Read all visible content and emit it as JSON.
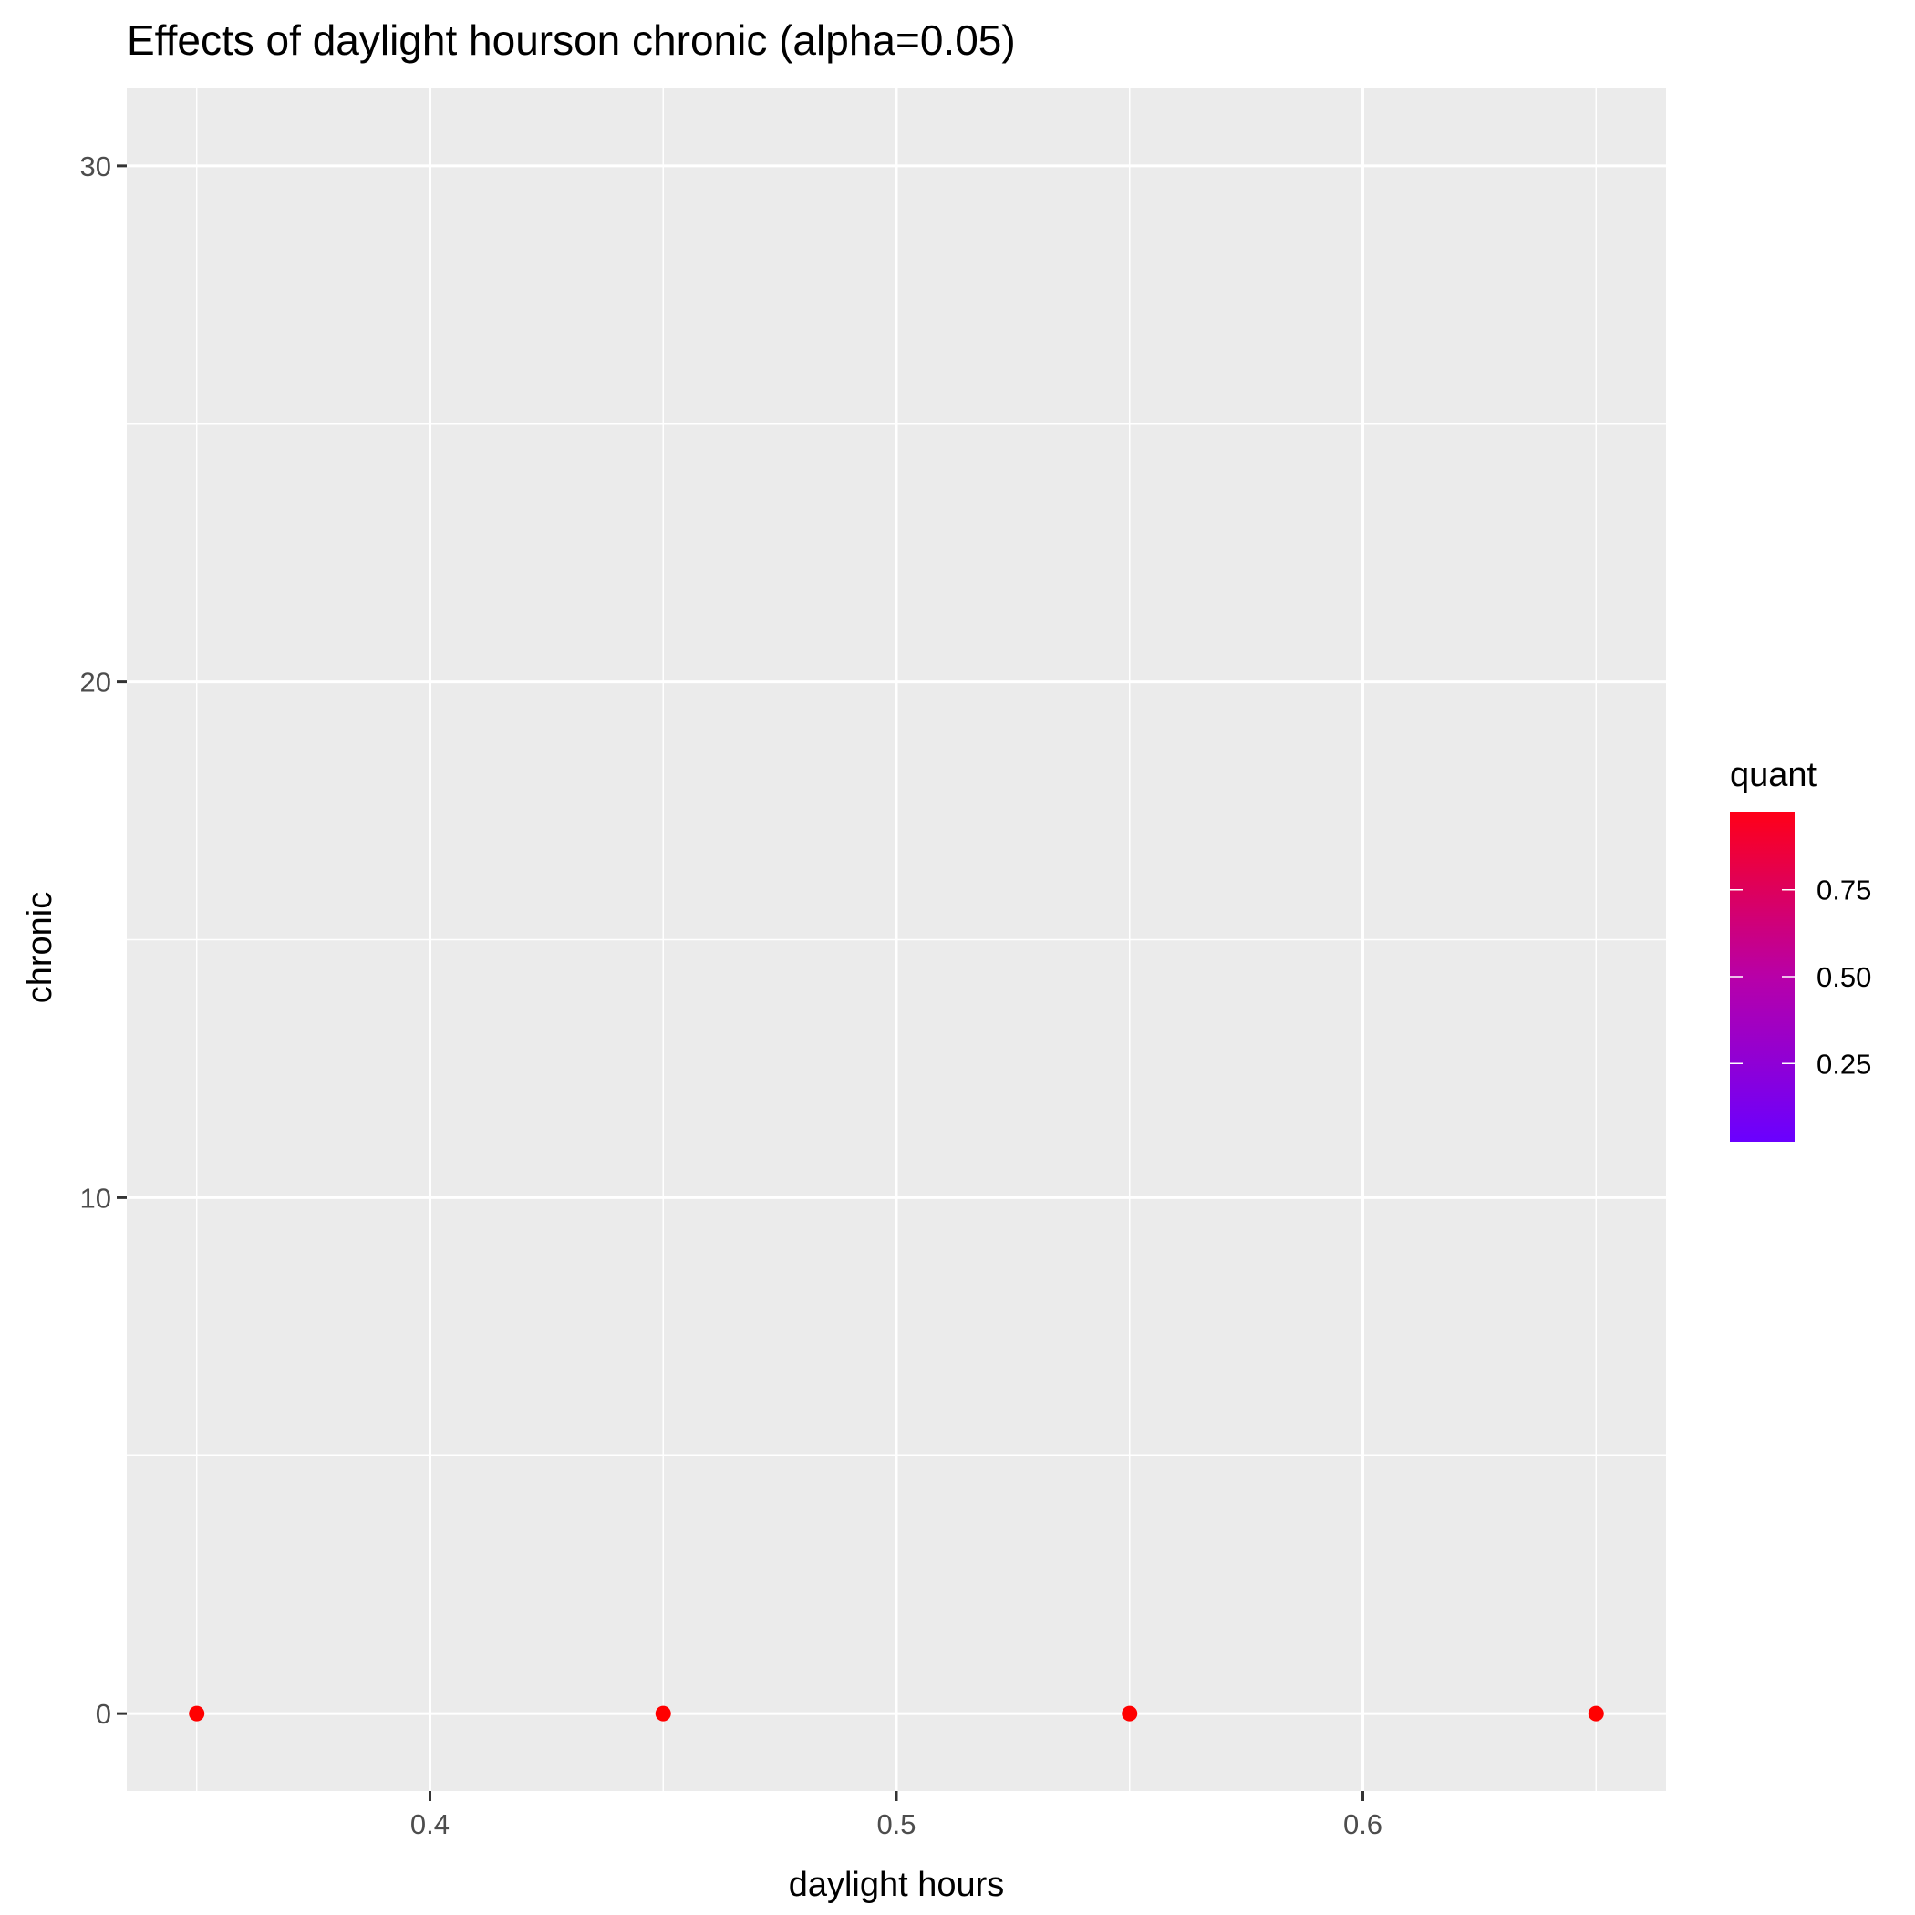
{
  "chart_data": {
    "type": "scatter",
    "title": "Effects of daylight hourson chronic (alpha=0.05)",
    "xlabel": "daylight hours",
    "ylabel": "chronic",
    "xlim": [
      0.335,
      0.665
    ],
    "ylim": [
      -1.5,
      31.5
    ],
    "x_ticks": [
      0.4,
      0.5,
      0.6
    ],
    "x_tick_labels": [
      "0.4",
      "0.5",
      "0.6"
    ],
    "x_minor_ticks": [
      0.35,
      0.45,
      0.55,
      0.65
    ],
    "y_ticks": [
      0,
      10,
      20,
      30
    ],
    "y_tick_labels": [
      "0",
      "10",
      "20",
      "30"
    ],
    "y_minor_ticks": [
      5,
      15,
      25
    ],
    "grid": true,
    "panel_background": "#EBEBEB",
    "grid_color": "#FFFFFF",
    "points": [
      {
        "x": 0.35,
        "y": 0,
        "quant": 1.0
      },
      {
        "x": 0.45,
        "y": 0,
        "quant": 1.0
      },
      {
        "x": 0.55,
        "y": 0,
        "quant": 1.0
      },
      {
        "x": 0.65,
        "y": 0,
        "quant": 1.0
      }
    ],
    "point_color": "#FF0000",
    "legend": {
      "title": "quant",
      "placement": "right",
      "type": "colorbar",
      "range": [
        0.025,
        0.975
      ],
      "color_low": "#6A00FF",
      "color_mid": "#B800A8",
      "color_high": "#FF0018",
      "breaks": [
        0.25,
        0.5,
        0.75
      ],
      "break_labels": [
        "0.25",
        "0.50",
        "0.75"
      ]
    }
  }
}
